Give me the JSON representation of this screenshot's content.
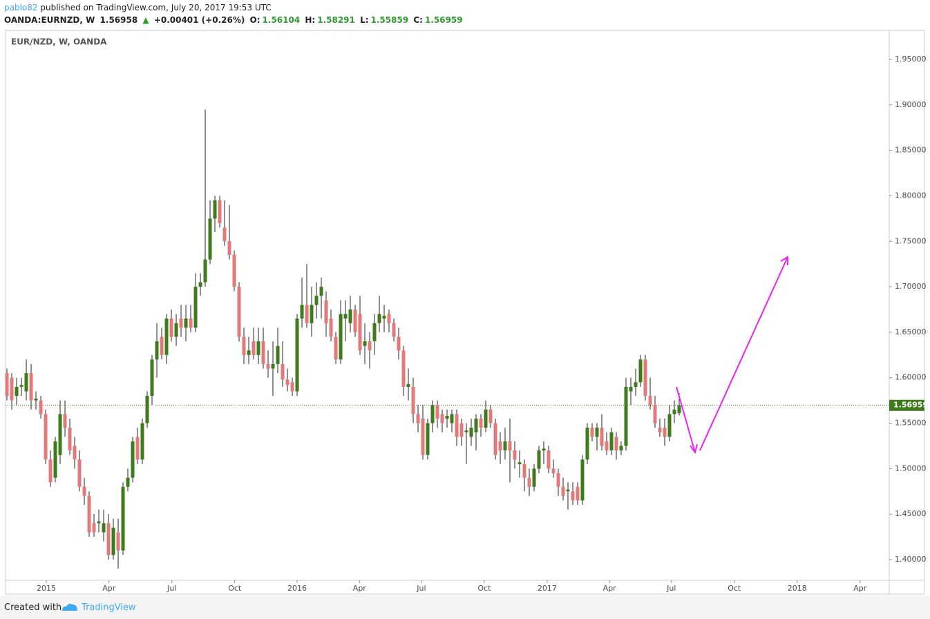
{
  "header": {
    "user": "pablo82",
    "published": "published on TradingView.com, July 20, 2017 19:53 UTC",
    "symbol": "OANDA:EURNZD, W",
    "price": "1.56958",
    "arrow": "▲",
    "change": "+0.00401 (+0.26%)",
    "o_label": "O:",
    "o": "1.56104",
    "h_label": "H:",
    "h": "1.58291",
    "l_label": "L:",
    "l": "1.55859",
    "c_label": "C:",
    "c": "1.56959"
  },
  "chart_data": {
    "type": "candlestick",
    "title": "EUR/NZD, W, OANDA",
    "up_color": "#3f7a1c",
    "down_color": "#e27a7a",
    "last_price": 1.56959,
    "last_color": "#3f7a1c",
    "ylim": [
      1.3772,
      1.9819
    ],
    "yticks": [
      {
        "value": 1.4,
        "label": "1.40000"
      },
      {
        "value": 1.45,
        "label": "1.45000"
      },
      {
        "value": 1.5,
        "label": "1.50000"
      },
      {
        "value": 1.55,
        "label": "1.55000"
      },
      {
        "value": 1.6,
        "label": "1.60000"
      },
      {
        "value": 1.65,
        "label": "1.65000"
      },
      {
        "value": 1.7,
        "label": "1.70000"
      },
      {
        "value": 1.75,
        "label": "1.75000"
      },
      {
        "value": 1.8,
        "label": "1.80000"
      },
      {
        "value": 1.85,
        "label": "1.85000"
      },
      {
        "value": 1.9,
        "label": "1.90000"
      },
      {
        "value": 1.95,
        "label": "1.95000"
      }
    ],
    "xlim": [
      -0.29,
      182.43
    ],
    "xticks": [
      {
        "value": 8.14,
        "label": "2015"
      },
      {
        "value": 21.1,
        "label": "Apr"
      },
      {
        "value": 34.1,
        "label": "Jul"
      },
      {
        "value": 47.1,
        "label": "Oct"
      },
      {
        "value": 60,
        "label": "2016"
      },
      {
        "value": 72.9,
        "label": "Apr"
      },
      {
        "value": 85.7,
        "label": "Jul"
      },
      {
        "value": 98.7,
        "label": "Oct"
      },
      {
        "value": 111.7,
        "label": "2017"
      },
      {
        "value": 124.6,
        "label": "Apr"
      },
      {
        "value": 137.4,
        "label": "Jul"
      },
      {
        "value": 150.4,
        "label": "Oct"
      },
      {
        "value": 163.4,
        "label": "2018"
      },
      {
        "value": 176.4,
        "label": "Apr"
      }
    ],
    "ohlc": [
      [
        1.605,
        1.61,
        1.575,
        1.58
      ],
      [
        1.6,
        1.605,
        1.565,
        1.575
      ],
      [
        1.58,
        1.6,
        1.57,
        1.59
      ],
      [
        1.59,
        1.6,
        1.58,
        1.592
      ],
      [
        1.585,
        1.62,
        1.575,
        1.605
      ],
      [
        1.605,
        1.615,
        1.565,
        1.575
      ],
      [
        1.575,
        1.585,
        1.565,
        1.577
      ],
      [
        1.575,
        1.58,
        1.555,
        1.56
      ],
      [
        1.56,
        1.565,
        1.505,
        1.51
      ],
      [
        1.51,
        1.52,
        1.48,
        1.485
      ],
      [
        1.49,
        1.535,
        1.485,
        1.53
      ],
      [
        1.515,
        1.575,
        1.505,
        1.56
      ],
      [
        1.56,
        1.575,
        1.535,
        1.545
      ],
      [
        1.545,
        1.555,
        1.515,
        1.52
      ],
      [
        1.525,
        1.535,
        1.5,
        1.51
      ],
      [
        1.51,
        1.52,
        1.475,
        1.48
      ],
      [
        1.48,
        1.49,
        1.46,
        1.47
      ],
      [
        1.47,
        1.475,
        1.425,
        1.43
      ],
      [
        1.44,
        1.45,
        1.425,
        1.43
      ],
      [
        1.44,
        1.455,
        1.43,
        1.442
      ],
      [
        1.43,
        1.455,
        1.42,
        1.44
      ],
      [
        1.44,
        1.45,
        1.4,
        1.405
      ],
      [
        1.405,
        1.445,
        1.4,
        1.435
      ],
      [
        1.43,
        1.445,
        1.39,
        1.41
      ],
      [
        1.41,
        1.485,
        1.405,
        1.48
      ],
      [
        1.48,
        1.5,
        1.475,
        1.49
      ],
      [
        1.49,
        1.535,
        1.485,
        1.53
      ],
      [
        1.535,
        1.545,
        1.505,
        1.51
      ],
      [
        1.51,
        1.555,
        1.505,
        1.55
      ],
      [
        1.55,
        1.585,
        1.545,
        1.58
      ],
      [
        1.58,
        1.625,
        1.57,
        1.62
      ],
      [
        1.62,
        1.66,
        1.6,
        1.64
      ],
      [
        1.645,
        1.655,
        1.62,
        1.625
      ],
      [
        1.625,
        1.67,
        1.615,
        1.665
      ],
      [
        1.665,
        1.675,
        1.64,
        1.645
      ],
      [
        1.645,
        1.67,
        1.635,
        1.66
      ],
      [
        1.665,
        1.68,
        1.645,
        1.655
      ],
      [
        1.655,
        1.68,
        1.64,
        1.665
      ],
      [
        1.665,
        1.68,
        1.65,
        1.655
      ],
      [
        1.655,
        1.715,
        1.65,
        1.7
      ],
      [
        1.7,
        1.715,
        1.69,
        1.705
      ],
      [
        1.705,
        1.895,
        1.7,
        1.73
      ],
      [
        1.73,
        1.795,
        1.725,
        1.775
      ],
      [
        1.775,
        1.8,
        1.76,
        1.795
      ],
      [
        1.795,
        1.8,
        1.765,
        1.77
      ],
      [
        1.765,
        1.795,
        1.745,
        1.75
      ],
      [
        1.75,
        1.79,
        1.73,
        1.735
      ],
      [
        1.735,
        1.74,
        1.695,
        1.7
      ],
      [
        1.7,
        1.705,
        1.64,
        1.645
      ],
      [
        1.645,
        1.655,
        1.615,
        1.625
      ],
      [
        1.625,
        1.645,
        1.615,
        1.63
      ],
      [
        1.64,
        1.655,
        1.62,
        1.625
      ],
      [
        1.625,
        1.655,
        1.615,
        1.64
      ],
      [
        1.64,
        1.655,
        1.61,
        1.615
      ],
      [
        1.615,
        1.63,
        1.6,
        1.61
      ],
      [
        1.61,
        1.64,
        1.58,
        1.615
      ],
      [
        1.615,
        1.655,
        1.605,
        1.635
      ],
      [
        1.615,
        1.64,
        1.59,
        1.598
      ],
      [
        1.598,
        1.61,
        1.585,
        1.592
      ],
      [
        1.595,
        1.6,
        1.58,
        1.585
      ],
      [
        1.585,
        1.67,
        1.58,
        1.665
      ],
      [
        1.665,
        1.71,
        1.655,
        1.68
      ],
      [
        1.68,
        1.725,
        1.655,
        1.66
      ],
      [
        1.66,
        1.7,
        1.645,
        1.68
      ],
      [
        1.68,
        1.705,
        1.665,
        1.69
      ],
      [
        1.69,
        1.71,
        1.665,
        1.7
      ],
      [
        1.685,
        1.695,
        1.645,
        1.66
      ],
      [
        1.665,
        1.675,
        1.64,
        1.645
      ],
      [
        1.645,
        1.65,
        1.615,
        1.62
      ],
      [
        1.62,
        1.685,
        1.615,
        1.67
      ],
      [
        1.665,
        1.685,
        1.64,
        1.67
      ],
      [
        1.66,
        1.69,
        1.65,
        1.675
      ],
      [
        1.675,
        1.68,
        1.645,
        1.65
      ],
      [
        1.67,
        1.69,
        1.625,
        1.63
      ],
      [
        1.635,
        1.66,
        1.615,
        1.64
      ],
      [
        1.64,
        1.65,
        1.61,
        1.63
      ],
      [
        1.64,
        1.67,
        1.625,
        1.66
      ],
      [
        1.66,
        1.69,
        1.65,
        1.67
      ],
      [
        1.665,
        1.68,
        1.65,
        1.668
      ],
      [
        1.67,
        1.675,
        1.65,
        1.66
      ],
      [
        1.66,
        1.665,
        1.64,
        1.645
      ],
      [
        1.645,
        1.655,
        1.62,
        1.63
      ],
      [
        1.63,
        1.635,
        1.58,
        1.59
      ],
      [
        1.59,
        1.61,
        1.575,
        1.593
      ],
      [
        1.59,
        1.6,
        1.55,
        1.56
      ],
      [
        1.56,
        1.57,
        1.54,
        1.55
      ],
      [
        1.555,
        1.57,
        1.51,
        1.515
      ],
      [
        1.515,
        1.555,
        1.51,
        1.55
      ],
      [
        1.55,
        1.575,
        1.54,
        1.57
      ],
      [
        1.57,
        1.575,
        1.545,
        1.555
      ],
      [
        1.56,
        1.565,
        1.54,
        1.55
      ],
      [
        1.555,
        1.565,
        1.545,
        1.558
      ],
      [
        1.55,
        1.565,
        1.54,
        1.56
      ],
      [
        1.56,
        1.565,
        1.525,
        1.535
      ],
      [
        1.55,
        1.555,
        1.525,
        1.535
      ],
      [
        1.54,
        1.55,
        1.505,
        1.542
      ],
      [
        1.535,
        1.555,
        1.525,
        1.545
      ],
      [
        1.54,
        1.56,
        1.52,
        1.555
      ],
      [
        1.555,
        1.56,
        1.535,
        1.545
      ],
      [
        1.545,
        1.575,
        1.54,
        1.565
      ],
      [
        1.565,
        1.57,
        1.545,
        1.55
      ],
      [
        1.55,
        1.555,
        1.51,
        1.515
      ],
      [
        1.53,
        1.54,
        1.505,
        1.52
      ],
      [
        1.52,
        1.545,
        1.51,
        1.53
      ],
      [
        1.53,
        1.555,
        1.485,
        1.52
      ],
      [
        1.52,
        1.53,
        1.5,
        1.51
      ],
      [
        1.505,
        1.52,
        1.49,
        1.507
      ],
      [
        1.505,
        1.51,
        1.475,
        1.49
      ],
      [
        1.49,
        1.5,
        1.47,
        1.48
      ],
      [
        1.48,
        1.505,
        1.475,
        1.5
      ],
      [
        1.5,
        1.525,
        1.495,
        1.52
      ],
      [
        1.52,
        1.53,
        1.505,
        1.522
      ],
      [
        1.52,
        1.525,
        1.495,
        1.5
      ],
      [
        1.5,
        1.51,
        1.49,
        1.495
      ],
      [
        1.495,
        1.5,
        1.47,
        1.48
      ],
      [
        1.48,
        1.49,
        1.465,
        1.47
      ],
      [
        1.475,
        1.485,
        1.455,
        1.477
      ],
      [
        1.475,
        1.485,
        1.46,
        1.465
      ],
      [
        1.48,
        1.485,
        1.46,
        1.465
      ],
      [
        1.465,
        1.515,
        1.46,
        1.51
      ],
      [
        1.51,
        1.55,
        1.505,
        1.545
      ],
      [
        1.545,
        1.55,
        1.53,
        1.535
      ],
      [
        1.535,
        1.55,
        1.52,
        1.545
      ],
      [
        1.545,
        1.56,
        1.52,
        1.525
      ],
      [
        1.53,
        1.54,
        1.515,
        1.52
      ],
      [
        1.52,
        1.545,
        1.515,
        1.54
      ],
      [
        1.535,
        1.54,
        1.51,
        1.52
      ],
      [
        1.52,
        1.53,
        1.515,
        1.525
      ],
      [
        1.525,
        1.6,
        1.52,
        1.59
      ],
      [
        1.585,
        1.6,
        1.57,
        1.59
      ],
      [
        1.59,
        1.61,
        1.58,
        1.595
      ],
      [
        1.595,
        1.625,
        1.59,
        1.62
      ],
      [
        1.62,
        1.625,
        1.575,
        1.58
      ],
      [
        1.58,
        1.6,
        1.565,
        1.57
      ],
      [
        1.57,
        1.58,
        1.545,
        1.55
      ],
      [
        1.545,
        1.555,
        1.535,
        1.54
      ],
      [
        1.545,
        1.555,
        1.525,
        1.535
      ],
      [
        1.535,
        1.57,
        1.53,
        1.56
      ],
      [
        1.56,
        1.575,
        1.55,
        1.565
      ],
      [
        1.56104,
        1.58291,
        1.55859,
        1.56959
      ]
    ]
  },
  "footer": {
    "created": "Created with",
    "brand": "TradingView"
  }
}
